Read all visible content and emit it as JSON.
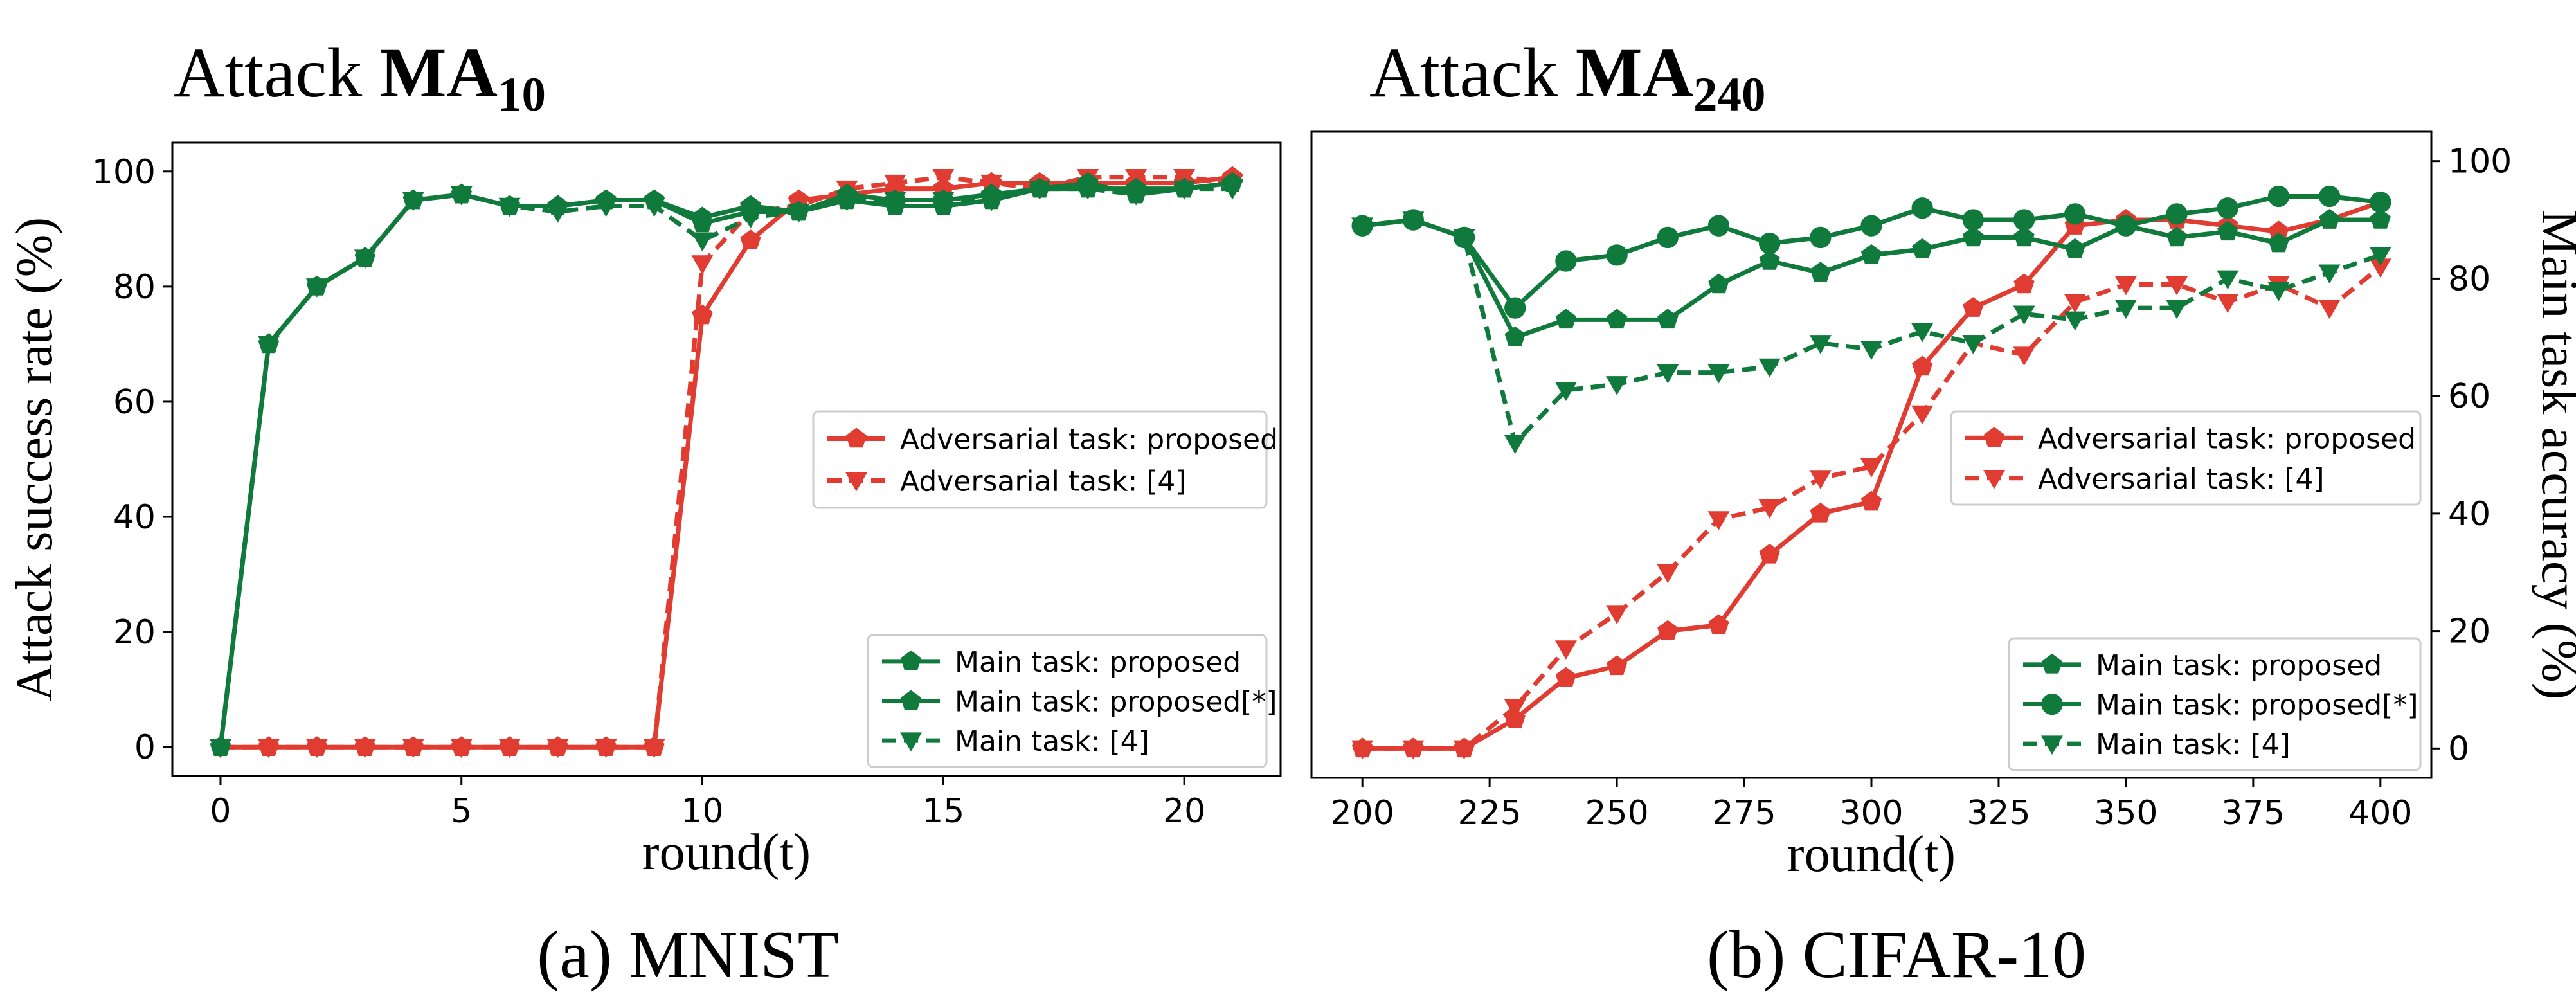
{
  "panels": [
    {
      "title_prefix": "Attack ",
      "title_bold": "MA",
      "title_sub": "10",
      "caption": "(a) MNIST"
    },
    {
      "title_prefix": "Attack ",
      "title_bold": "MA",
      "title_sub": "240",
      "caption": "(b) CIFAR-10"
    }
  ],
  "colors": {
    "red": "#e03c31",
    "green": "#0f7a3c"
  },
  "chart_data": [
    {
      "type": "line",
      "xlabel": "round(t)",
      "ylabel": "Attack success rate (%)",
      "xlim": [
        -1,
        22
      ],
      "ylim": [
        -5,
        105
      ],
      "xticks": [
        0,
        5,
        10,
        15,
        20
      ],
      "yticks": [
        0,
        20,
        40,
        60,
        80,
        100
      ],
      "legends": [
        {
          "placement": "center-right",
          "entries": [
            "Adversarial task: proposed",
            "Adversarial task: [4]"
          ]
        },
        {
          "placement": "bottom-right",
          "entries": [
            "Main task: proposed",
            "Main task: proposed[*]",
            "Main task: [4]"
          ]
        }
      ],
      "series": [
        {
          "name": "Adversarial task: proposed",
          "color": "red",
          "style": "solid",
          "marker": "pentagon",
          "x": [
            0,
            1,
            2,
            3,
            4,
            5,
            6,
            7,
            8,
            9,
            10,
            11,
            12,
            13,
            14,
            15,
            16,
            17,
            18,
            19,
            20,
            21
          ],
          "y": [
            0,
            0,
            0,
            0,
            0,
            0,
            0,
            0,
            0,
            0,
            75,
            88,
            95,
            96,
            97,
            97,
            98,
            98,
            98,
            98,
            98,
            99
          ]
        },
        {
          "name": "Adversarial task: [4]",
          "color": "red",
          "style": "dashed",
          "marker": "triangle-down",
          "x": [
            0,
            1,
            2,
            3,
            4,
            5,
            6,
            7,
            8,
            9,
            10,
            11,
            12,
            13,
            14,
            15,
            16,
            17,
            18,
            19,
            20,
            21
          ],
          "y": [
            0,
            0,
            0,
            0,
            0,
            0,
            0,
            0,
            0,
            0,
            84,
            93,
            94,
            97,
            98,
            99,
            98,
            97,
            99,
            99,
            99,
            98
          ]
        },
        {
          "name": "Main task: proposed",
          "color": "green",
          "style": "solid",
          "marker": "pentagon",
          "x": [
            0,
            1,
            2,
            3,
            4,
            5,
            6,
            7,
            8,
            9,
            10,
            11,
            12,
            13,
            14,
            15,
            16,
            17,
            18,
            19,
            20,
            21
          ],
          "y": [
            0,
            70,
            80,
            85,
            95,
            96,
            94,
            94,
            95,
            95,
            91,
            93,
            93,
            96,
            95,
            95,
            96,
            97,
            97,
            97,
            97,
            98
          ]
        },
        {
          "name": "Main task: proposed[*]",
          "color": "green",
          "style": "solid",
          "marker": "pentagon",
          "x": [
            0,
            1,
            2,
            3,
            4,
            5,
            6,
            7,
            8,
            9,
            10,
            11,
            12,
            13,
            14,
            15,
            16,
            17,
            18,
            19,
            20,
            21
          ],
          "y": [
            0,
            70,
            80,
            85,
            95,
            96,
            94,
            94,
            95,
            95,
            92,
            94,
            93,
            95,
            94,
            94,
            95,
            97,
            98,
            96,
            97,
            98
          ]
        },
        {
          "name": "Main task: [4]",
          "color": "green",
          "style": "dashed",
          "marker": "triangle-down",
          "x": [
            0,
            1,
            2,
            3,
            4,
            5,
            6,
            7,
            8,
            9,
            10,
            11,
            12,
            13,
            14,
            15,
            16,
            17,
            18,
            19,
            20,
            21
          ],
          "y": [
            0,
            70,
            80,
            85,
            95,
            96,
            94,
            93,
            94,
            94,
            88,
            92,
            93,
            95,
            95,
            95,
            95,
            97,
            97,
            96,
            97,
            97
          ]
        }
      ]
    },
    {
      "type": "line",
      "xlabel": "round(t)",
      "ylabel": "Main task accuracy (%)",
      "xlim": [
        190,
        410
      ],
      "ylim": [
        -5,
        105
      ],
      "xticks": [
        200,
        225,
        250,
        275,
        300,
        325,
        350,
        375,
        400
      ],
      "yticks": [
        0,
        20,
        40,
        60,
        80,
        100
      ],
      "legends": [
        {
          "placement": "center-right",
          "entries": [
            "Adversarial task: proposed",
            "Adversarial task: [4]"
          ]
        },
        {
          "placement": "bottom-right",
          "entries": [
            "Main task: proposed",
            "Main task: proposed[*]",
            "Main task: [4]"
          ]
        }
      ],
      "series": [
        {
          "name": "Adversarial task: proposed",
          "color": "red",
          "style": "solid",
          "marker": "pentagon",
          "x": [
            200,
            210,
            220,
            230,
            240,
            250,
            260,
            270,
            280,
            290,
            300,
            310,
            320,
            330,
            340,
            350,
            360,
            370,
            380,
            390,
            400
          ],
          "y": [
            0,
            0,
            0,
            5,
            12,
            14,
            20,
            21,
            33,
            40,
            42,
            65,
            75,
            79,
            89,
            90,
            90,
            89,
            88,
            90,
            93
          ]
        },
        {
          "name": "Adversarial task: [4]",
          "color": "red",
          "style": "dashed",
          "marker": "triangle-down",
          "x": [
            200,
            210,
            220,
            230,
            240,
            250,
            260,
            270,
            280,
            290,
            300,
            310,
            320,
            330,
            340,
            350,
            360,
            370,
            380,
            390,
            400
          ],
          "y": [
            0,
            0,
            0,
            7,
            17,
            23,
            30,
            39,
            41,
            46,
            48,
            57,
            69,
            67,
            76,
            79,
            79,
            76,
            79,
            75,
            82
          ]
        },
        {
          "name": "Main task: proposed",
          "color": "green",
          "style": "solid",
          "marker": "pentagon",
          "x": [
            200,
            210,
            220,
            230,
            240,
            250,
            260,
            270,
            280,
            290,
            300,
            310,
            320,
            330,
            340,
            350,
            360,
            370,
            380,
            390,
            400
          ],
          "y": [
            89,
            90,
            87,
            70,
            73,
            73,
            73,
            79,
            83,
            81,
            84,
            85,
            87,
            87,
            85,
            89,
            87,
            88,
            86,
            90,
            90
          ]
        },
        {
          "name": "Main task: proposed[*]",
          "color": "green",
          "style": "solid",
          "marker": "circle",
          "x": [
            200,
            210,
            220,
            230,
            240,
            250,
            260,
            270,
            280,
            290,
            300,
            310,
            320,
            330,
            340,
            350,
            360,
            370,
            380,
            390,
            400
          ],
          "y": [
            89,
            90,
            87,
            75,
            83,
            84,
            87,
            89,
            86,
            87,
            89,
            92,
            90,
            90,
            91,
            89,
            91,
            92,
            94,
            94,
            93
          ]
        },
        {
          "name": "Main task: [4]",
          "color": "green",
          "style": "dashed",
          "marker": "triangle-down",
          "x": [
            200,
            210,
            220,
            230,
            240,
            250,
            260,
            270,
            280,
            290,
            300,
            310,
            320,
            330,
            340,
            350,
            360,
            370,
            380,
            390,
            400
          ],
          "y": [
            89,
            90,
            87,
            52,
            61,
            62,
            64,
            64,
            65,
            69,
            68,
            71,
            69,
            74,
            73,
            75,
            75,
            80,
            78,
            81,
            84
          ]
        }
      ]
    }
  ]
}
